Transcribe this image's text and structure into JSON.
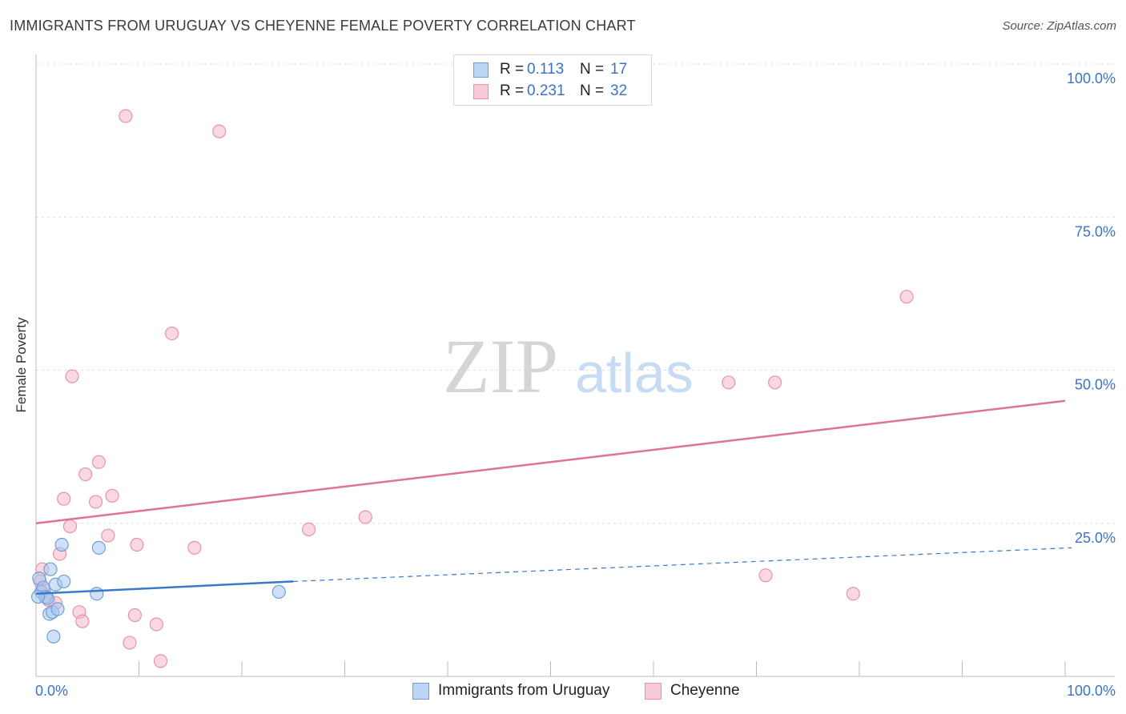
{
  "title": "IMMIGRANTS FROM URUGUAY VS CHEYENNE FEMALE POVERTY CORRELATION CHART",
  "source": "Source: ZipAtlas.com",
  "watermark": {
    "zip": "ZIP",
    "atlas": "atlas"
  },
  "legend": {
    "rows": [
      {
        "r_label": "R =",
        "r_value": "0.113",
        "n_label": "N =",
        "n_value": "17"
      },
      {
        "r_label": "R =",
        "r_value": "0.231",
        "n_label": "N =",
        "n_value": "32"
      }
    ]
  },
  "bottom_legend": [
    "Immigrants from Uruguay",
    "Cheyenne"
  ],
  "colors": {
    "blue_fill": "#a8c8f0",
    "blue_stroke": "#6c9fd8",
    "blue_line": "#3a78c9",
    "pink_fill": "#f5b8cb",
    "pink_stroke": "#e892ad",
    "pink_line": "#e0719a",
    "grid": "#dddddd",
    "axis_text": "#3b73c4"
  },
  "chart_data": {
    "type": "scatter",
    "title": "IMMIGRANTS FROM URUGUAY VS CHEYENNE FEMALE POVERTY CORRELATION CHART",
    "xlabel": "",
    "ylabel": "Female Poverty",
    "xlim": [
      0,
      100
    ],
    "ylim": [
      0,
      100
    ],
    "x_tick_labels": [
      "0.0%",
      "100.0%"
    ],
    "y_tick_labels": [
      "100.0%",
      "75.0%",
      "50.0%",
      "25.0%"
    ],
    "y_ticks": [
      100,
      75,
      50,
      25
    ],
    "series": [
      {
        "name": "Immigrants from Uruguay",
        "r": 0.113,
        "n": 17,
        "points": [
          {
            "x": 0.3,
            "y": 16.0
          },
          {
            "x": 0.5,
            "y": 13.8
          },
          {
            "x": 0.7,
            "y": 14.5
          },
          {
            "x": 0.9,
            "y": 13.0
          },
          {
            "x": 1.1,
            "y": 12.8
          },
          {
            "x": 1.3,
            "y": 10.2
          },
          {
            "x": 1.4,
            "y": 17.5
          },
          {
            "x": 1.6,
            "y": 10.5
          },
          {
            "x": 1.7,
            "y": 6.5
          },
          {
            "x": 1.9,
            "y": 15.0
          },
          {
            "x": 2.1,
            "y": 11.0
          },
          {
            "x": 2.5,
            "y": 21.5
          },
          {
            "x": 2.7,
            "y": 15.5
          },
          {
            "x": 5.9,
            "y": 13.5
          },
          {
            "x": 6.1,
            "y": 21.0
          },
          {
            "x": 23.6,
            "y": 13.8
          },
          {
            "x": 0.2,
            "y": 13.0
          }
        ],
        "trend": {
          "x0": 0,
          "y0": 13.5,
          "x1": 25,
          "y1": 15.5,
          "dashed_to": {
            "x": 100,
            "y": 21.0
          }
        }
      },
      {
        "name": "Cheyenne",
        "r": 0.231,
        "n": 32,
        "points": [
          {
            "x": 8.7,
            "y": 91.5
          },
          {
            "x": 17.8,
            "y": 89.0
          },
          {
            "x": 13.2,
            "y": 56.0
          },
          {
            "x": 3.5,
            "y": 49.0
          },
          {
            "x": 6.1,
            "y": 35.0
          },
          {
            "x": 4.8,
            "y": 33.0
          },
          {
            "x": 7.4,
            "y": 29.5
          },
          {
            "x": 5.8,
            "y": 28.5
          },
          {
            "x": 2.7,
            "y": 29.0
          },
          {
            "x": 3.3,
            "y": 24.5
          },
          {
            "x": 7.0,
            "y": 23.0
          },
          {
            "x": 9.8,
            "y": 21.5
          },
          {
            "x": 15.4,
            "y": 21.0
          },
          {
            "x": 2.3,
            "y": 20.0
          },
          {
            "x": 26.5,
            "y": 24.0
          },
          {
            "x": 32.0,
            "y": 26.0
          },
          {
            "x": 0.6,
            "y": 17.5
          },
          {
            "x": 0.4,
            "y": 15.5
          },
          {
            "x": 0.8,
            "y": 14.0
          },
          {
            "x": 1.2,
            "y": 12.5
          },
          {
            "x": 1.9,
            "y": 12.0
          },
          {
            "x": 4.2,
            "y": 10.5
          },
          {
            "x": 4.5,
            "y": 9.0
          },
          {
            "x": 9.6,
            "y": 10.0
          },
          {
            "x": 9.1,
            "y": 5.5
          },
          {
            "x": 11.7,
            "y": 8.5
          },
          {
            "x": 12.1,
            "y": 2.5
          },
          {
            "x": 84.6,
            "y": 62.0
          },
          {
            "x": 67.3,
            "y": 48.0
          },
          {
            "x": 71.8,
            "y": 48.0
          },
          {
            "x": 70.9,
            "y": 16.5
          },
          {
            "x": 79.4,
            "y": 13.5
          }
        ],
        "trend": {
          "x0": 0,
          "y0": 25.0,
          "x1": 100,
          "y1": 45.0
        }
      }
    ]
  }
}
